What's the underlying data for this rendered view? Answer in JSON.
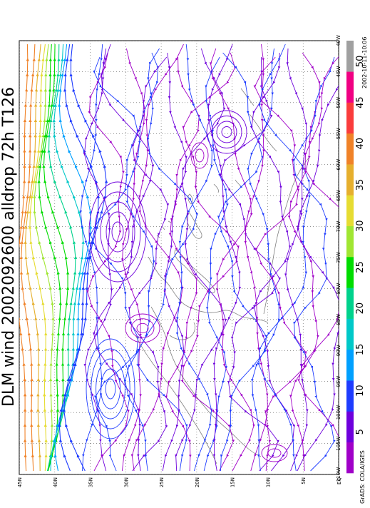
{
  "title": "DLM wind 2002092600 alldrop 72h T126",
  "credit": "GrADS: COLA/IGES",
  "timestamp": "2002-10-11-10:06",
  "map": {
    "lat_labels": [
      "EQ",
      "5N",
      "10N",
      "15N",
      "20N",
      "25N",
      "30N",
      "35N",
      "40N",
      "45N"
    ],
    "lon_labels": [
      "110W",
      "105W",
      "100W",
      "95W",
      "90W",
      "85W",
      "80W",
      "75W",
      "70W",
      "65W",
      "60W",
      "55W",
      "50W",
      "45W",
      "40W"
    ],
    "lat_range": [
      0,
      45
    ],
    "lon_range": [
      -110,
      -40
    ],
    "grid": "dotted every 5 degrees",
    "orientation": "rotated 90 degrees counter-clockwise"
  },
  "colorbar": {
    "labels": [
      "5",
      "10",
      "15",
      "20",
      "25",
      "30",
      "35",
      "40",
      "45",
      "50"
    ],
    "colors": [
      "#a000c8",
      "#6e00dc",
      "#1e3cff",
      "#00a0ff",
      "#00c8c8",
      "#00d28c",
      "#00dc00",
      "#a0e632",
      "#e6dc32",
      "#e6af2d",
      "#f08228",
      "#fa3c3c",
      "#f00082",
      "#a0a0a0"
    ]
  }
}
